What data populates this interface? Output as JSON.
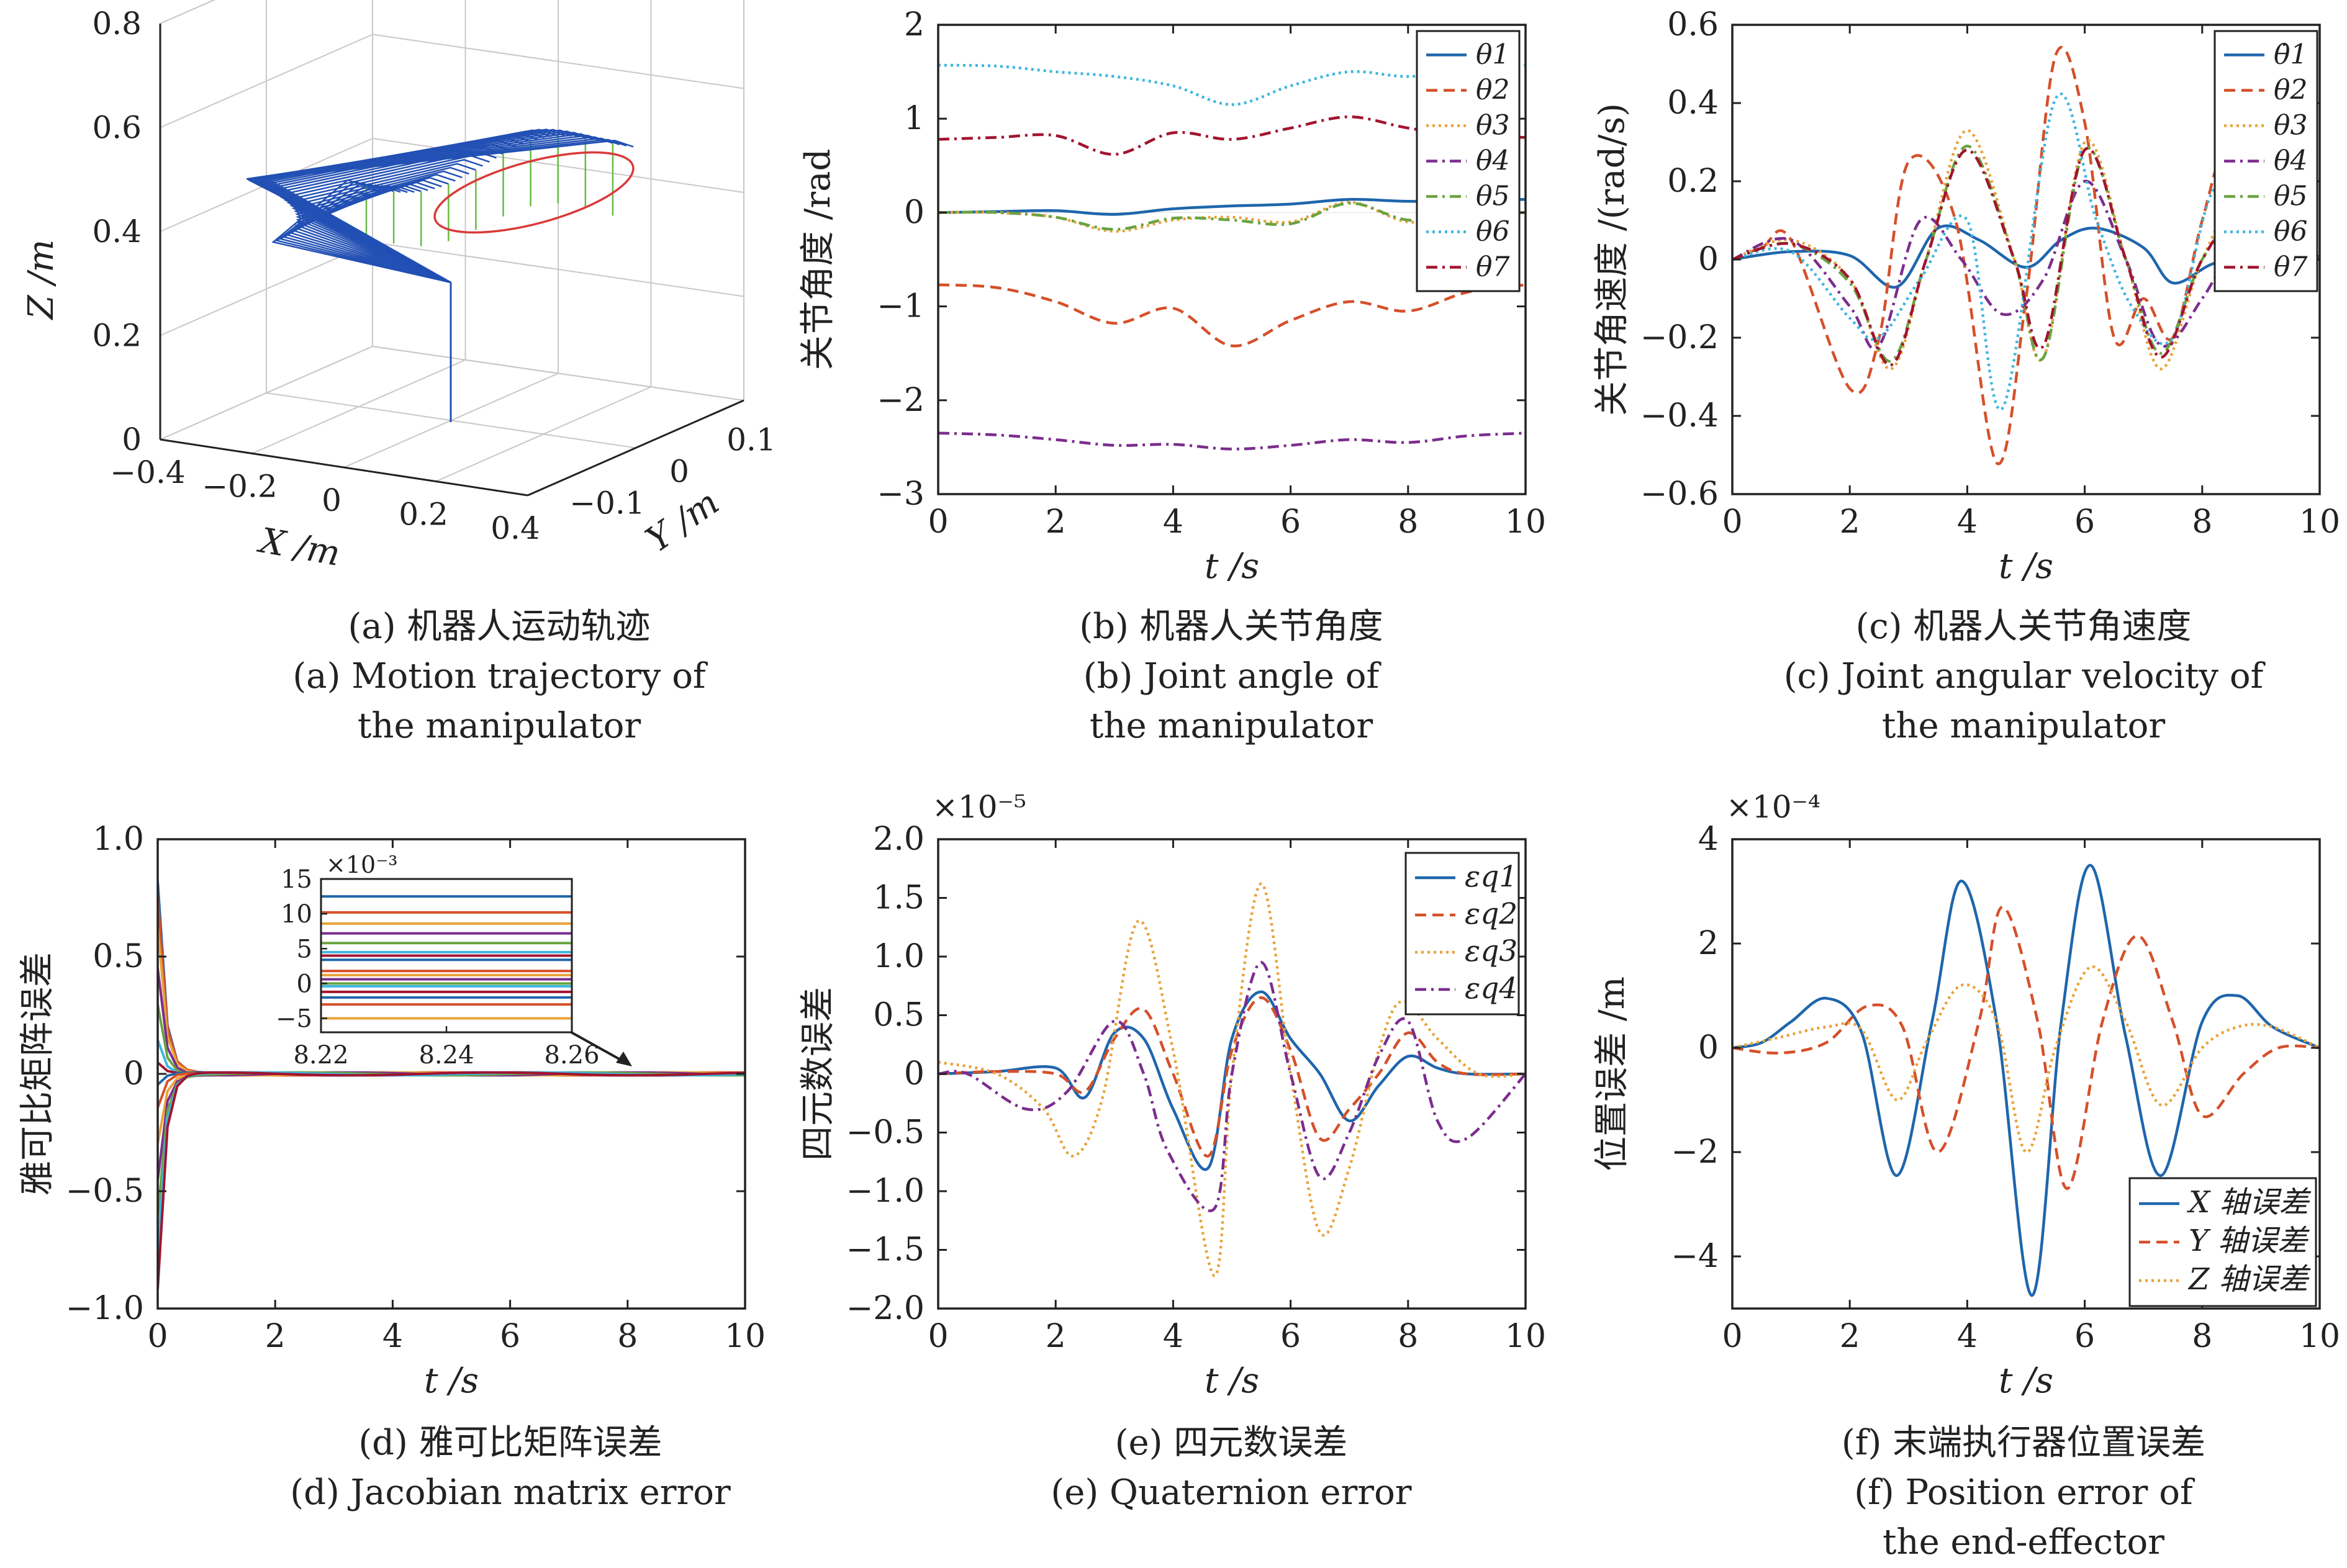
{
  "colors": {
    "s1": "#1f66ac",
    "s2": "#d5502a",
    "s3": "#e8a33a",
    "s4": "#7b2d8e",
    "s5": "#6aa341",
    "s6": "#3fb6df",
    "s7": "#a2142f",
    "traj_blue": "#2250b4",
    "traj_green": "#66bb44",
    "traj_red": "#d93a3a",
    "axis": "#222222",
    "grid": "#c8c8c8"
  },
  "captions": {
    "a": [
      "(a) 机器人运动轨迹",
      "(a) Motion trajectory of",
      "the manipulator"
    ],
    "b": [
      "(b) 机器人关节角度",
      "(b) Joint angle of",
      "the manipulator"
    ],
    "c": [
      "(c) 机器人关节角速度",
      "(c) Joint angular velocity of",
      "the manipulator"
    ],
    "d": [
      "(d) 雅可比矩阵误差",
      "(d) Jacobian matrix error"
    ],
    "e": [
      "(e) 四元数误差",
      "(e) Quaternion error"
    ],
    "f": [
      "(f) 末端执行器位置误差",
      "(f) Position error of",
      "the end-effector"
    ]
  },
  "chart_data": [
    {
      "id": "a",
      "type": "line3d",
      "xlabel": "X /m",
      "ylabel": "Y /m",
      "zlabel": "Z /m",
      "xticks": [
        "−0.4",
        "−0.2",
        "0",
        "0.2",
        "0.4"
      ],
      "yticks": [
        "−0.1",
        "0",
        "0.1"
      ],
      "zticks": [
        "0",
        "0.2",
        "0.4",
        "0.6",
        "0.8"
      ],
      "xlim": [
        -0.4,
        0.4
      ],
      "ylim": [
        -0.15,
        0.15
      ],
      "zlim": [
        0,
        0.8
      ]
    },
    {
      "id": "b",
      "type": "line",
      "xlabel": "t /s",
      "ylabel": "关节角度 /rad",
      "xlim": [
        0,
        10
      ],
      "ylim": [
        -3,
        2
      ],
      "xticks": [
        "0",
        "2",
        "4",
        "6",
        "8",
        "10"
      ],
      "yticks": [
        "−3",
        "−2",
        "−1",
        "0",
        "1",
        "2"
      ],
      "legend": [
        "θ1",
        "θ2",
        "θ3",
        "θ4",
        "θ5",
        "θ6",
        "θ7"
      ],
      "legend_position": "top-right",
      "series": [
        {
          "name": "θ1",
          "color": "s1",
          "dash": "solid",
          "x": [
            0,
            1,
            2,
            3,
            4,
            5,
            6,
            7,
            8,
            9,
            10
          ],
          "y": [
            0,
            0.01,
            0.02,
            -0.02,
            0.04,
            0.07,
            0.09,
            0.14,
            0.12,
            0.13,
            0.14
          ]
        },
        {
          "name": "θ2",
          "color": "s2",
          "dash": "dash",
          "x": [
            0,
            1,
            2,
            3,
            4,
            5,
            6,
            7,
            8,
            9,
            10
          ],
          "y": [
            -0.77,
            -0.8,
            -0.95,
            -1.18,
            -1.02,
            -1.42,
            -1.15,
            -0.95,
            -1.05,
            -0.85,
            -0.77
          ]
        },
        {
          "name": "θ3",
          "color": "s3",
          "dash": "dot",
          "x": [
            0,
            1,
            2,
            3,
            4,
            5,
            6,
            7,
            8,
            9,
            10
          ],
          "y": [
            0,
            0,
            -0.05,
            -0.2,
            -0.08,
            -0.05,
            -0.1,
            0.11,
            -0.1,
            -0.02,
            0
          ]
        },
        {
          "name": "θ4",
          "color": "s4",
          "dash": "dashdot",
          "x": [
            0,
            1,
            2,
            3,
            4,
            5,
            6,
            7,
            8,
            9,
            10
          ],
          "y": [
            -2.35,
            -2.37,
            -2.42,
            -2.48,
            -2.47,
            -2.52,
            -2.48,
            -2.42,
            -2.45,
            -2.38,
            -2.35
          ]
        },
        {
          "name": "θ5",
          "color": "s5",
          "dash": "dashdot",
          "x": [
            0,
            1,
            2,
            3,
            4,
            5,
            6,
            7,
            8,
            9,
            10
          ],
          "y": [
            0,
            0,
            -0.05,
            -0.18,
            -0.06,
            -0.08,
            -0.12,
            0.1,
            -0.08,
            -0.02,
            0
          ]
        },
        {
          "name": "θ6",
          "color": "s6",
          "dash": "dot",
          "x": [
            0,
            1,
            2,
            3,
            4,
            5,
            6,
            7,
            8,
            9,
            10
          ],
          "y": [
            1.57,
            1.56,
            1.5,
            1.45,
            1.35,
            1.15,
            1.35,
            1.5,
            1.45,
            1.52,
            1.57
          ]
        },
        {
          "name": "θ7",
          "color": "s7",
          "dash": "dashdot",
          "x": [
            0,
            1,
            2,
            3,
            4,
            5,
            6,
            7,
            8,
            9,
            10
          ],
          "y": [
            0.78,
            0.8,
            0.82,
            0.62,
            0.85,
            0.78,
            0.9,
            1.02,
            0.9,
            0.82,
            0.8
          ]
        }
      ]
    },
    {
      "id": "c",
      "type": "line",
      "xlabel": "t /s",
      "ylabel": "关节角速度 /(rad/s)",
      "xlim": [
        0,
        10
      ],
      "ylim": [
        -0.6,
        0.6
      ],
      "xticks": [
        "0",
        "2",
        "4",
        "6",
        "8",
        "10"
      ],
      "yticks": [
        "−0.6",
        "−0.4",
        "−0.2",
        "0",
        "0.2",
        "0.4",
        "0.6"
      ],
      "legend": [
        "θ̇1",
        "θ2",
        "θ3",
        "θ4",
        "θ5",
        "θ6",
        "θ7"
      ],
      "legend_position": "top-right",
      "series": [
        {
          "name": "θ̇1",
          "color": "s1",
          "dash": "solid",
          "x": [
            0,
            1,
            2,
            2.8,
            3.5,
            4.2,
            5,
            5.6,
            6.2,
            7,
            7.5,
            8.2,
            9,
            10
          ],
          "y": [
            0,
            0.02,
            0.01,
            -0.07,
            0.08,
            0.05,
            -0.02,
            0.05,
            0.08,
            0.03,
            -0.06,
            -0.01,
            0.01,
            0
          ]
        },
        {
          "name": "θ2",
          "color": "s2",
          "dash": "dash",
          "x": [
            0,
            0.5,
            1,
            2,
            2.5,
            3,
            3.8,
            4.5,
            5,
            5.5,
            6,
            6.5,
            7,
            7.5,
            8,
            8.5,
            9,
            9.5,
            10
          ],
          "y": [
            0,
            0.03,
            0.05,
            -0.33,
            -0.2,
            0.25,
            0.1,
            -0.52,
            -0.1,
            0.52,
            0.35,
            -0.2,
            -0.1,
            -0.2,
            0.1,
            0.32,
            0.1,
            0.02,
            0
          ]
        },
        {
          "name": "θ3",
          "color": "s3",
          "dash": "dot",
          "x": [
            0,
            1,
            2,
            2.7,
            3.3,
            4,
            4.8,
            5.3,
            6,
            6.7,
            7.3,
            8,
            8.7,
            10
          ],
          "y": [
            0,
            0.05,
            -0.05,
            -0.28,
            0.0,
            0.33,
            0.0,
            -0.25,
            0.3,
            0.0,
            -0.28,
            0.0,
            0.15,
            0
          ]
        },
        {
          "name": "θ4",
          "color": "s4",
          "dash": "dashdot",
          "x": [
            0,
            1,
            2,
            2.5,
            3.2,
            3.9,
            4.6,
            5.3,
            6,
            6.7,
            7.3,
            8,
            8.6,
            9.3,
            10
          ],
          "y": [
            0,
            0.05,
            -0.12,
            -0.22,
            0.1,
            0.0,
            -0.14,
            -0.05,
            0.2,
            0.0,
            -0.22,
            -0.1,
            0.05,
            0.14,
            0
          ]
        },
        {
          "name": "θ5",
          "color": "s5",
          "dash": "dashdot",
          "x": [
            0,
            1,
            2,
            2.7,
            3.3,
            4,
            4.8,
            5.3,
            6,
            6.7,
            7.3,
            8,
            8.7,
            10
          ],
          "y": [
            0,
            0.04,
            -0.06,
            -0.26,
            0.0,
            0.29,
            0.0,
            -0.25,
            0.28,
            0.0,
            -0.24,
            0.0,
            0.1,
            0
          ]
        },
        {
          "name": "θ6",
          "color": "s6",
          "dash": "dot",
          "x": [
            0,
            1,
            2,
            2.5,
            3.2,
            4,
            4.6,
            5.5,
            6.2,
            6.8,
            7.5,
            8.2,
            9,
            10
          ],
          "y": [
            0,
            0.02,
            -0.15,
            -0.2,
            -0.05,
            0.1,
            -0.38,
            0.41,
            0.1,
            -0.12,
            -0.2,
            0.18,
            0.12,
            0
          ]
        },
        {
          "name": "θ7",
          "color": "s7",
          "dash": "dashdot",
          "x": [
            0,
            1,
            2,
            2.7,
            3.3,
            4,
            4.8,
            5.3,
            6,
            6.7,
            7.3,
            8,
            8.7,
            10
          ],
          "y": [
            0,
            0.04,
            -0.05,
            -0.27,
            0.0,
            0.28,
            0.0,
            -0.22,
            0.28,
            0.0,
            -0.25,
            0.0,
            0.1,
            0
          ]
        }
      ]
    },
    {
      "id": "d",
      "type": "line",
      "xlabel": "t /s",
      "ylabel": "雅可比矩阵误差",
      "xlim": [
        0,
        10
      ],
      "ylim": [
        -1.0,
        1.0
      ],
      "xticks": [
        "0",
        "2",
        "4",
        "6",
        "8",
        "10"
      ],
      "yticks": [
        "−1.0",
        "−0.5",
        "0",
        "0.5",
        "1.0"
      ],
      "initial_values": [
        0.82,
        0.75,
        0.62,
        0.45,
        0.3,
        0.15,
        0.05,
        -0.05,
        -0.15,
        -0.3,
        -0.45,
        -0.6,
        -0.75,
        -0.92
      ],
      "inset": {
        "xlim": [
          8.22,
          8.26
        ],
        "ylim": [
          -7,
          15
        ],
        "xticks": [
          "8.22",
          "8.24",
          "8.26"
        ],
        "yticks": [
          "−5",
          "0",
          "5",
          "10",
          "15"
        ],
        "exponent": "×10⁻³",
        "levels": [
          12.5,
          10.2,
          8.6,
          7.2,
          5.8,
          4.5,
          4.0,
          3.4,
          1.8,
          1.2,
          0.6,
          0.0,
          -0.4,
          -1.2,
          -2.0,
          -3.0,
          -5.0
        ]
      }
    },
    {
      "id": "e",
      "type": "line",
      "xlabel": "t /s",
      "ylabel": "四元数误差",
      "xlim": [
        0,
        10
      ],
      "ylim": [
        -2.0,
        2.0
      ],
      "exponent": "×10⁻⁵",
      "xticks": [
        "0",
        "2",
        "4",
        "6",
        "8",
        "10"
      ],
      "yticks": [
        "−2.0",
        "−1.5",
        "−1.0",
        "−0.5",
        "0",
        "0.5",
        "1.0",
        "1.5",
        "2.0"
      ],
      "legend": [
        "εq1",
        "εq2",
        "εq3",
        "εq4"
      ],
      "legend_position": "top-right",
      "series": [
        {
          "name": "εq1",
          "color": "s1",
          "dash": "solid",
          "x": [
            0,
            1,
            2,
            2.5,
            3,
            3.5,
            4,
            4.6,
            5,
            5.5,
            6,
            6.5,
            7,
            7.5,
            8,
            8.5,
            9,
            10
          ],
          "y": [
            0,
            0.02,
            0.05,
            -0.2,
            0.35,
            0.3,
            -0.3,
            -0.8,
            0.3,
            0.7,
            0.3,
            0.0,
            -0.4,
            -0.1,
            0.15,
            0.05,
            0.0,
            0
          ]
        },
        {
          "name": "εq2",
          "color": "s2",
          "dash": "dash",
          "x": [
            0,
            1,
            2,
            2.5,
            3,
            3.5,
            4,
            4.6,
            5,
            5.5,
            6,
            6.5,
            7,
            7.5,
            8,
            8.5,
            9,
            10
          ],
          "y": [
            0,
            0.02,
            0.0,
            -0.15,
            0.3,
            0.55,
            0.0,
            -0.7,
            0.2,
            0.65,
            0.2,
            -0.55,
            -0.3,
            0.0,
            0.35,
            0.1,
            0.0,
            0
          ]
        },
        {
          "name": "εq3",
          "color": "s3",
          "dash": "dot",
          "x": [
            0,
            1,
            1.8,
            2.3,
            2.8,
            3.4,
            4,
            4.7,
            5,
            5.5,
            6,
            6.5,
            7,
            7.5,
            7.9,
            8.5,
            9.2,
            10
          ],
          "y": [
            0.1,
            0.0,
            -0.3,
            -0.7,
            -0.2,
            1.3,
            0.2,
            -1.72,
            0.0,
            1.62,
            0.0,
            -1.35,
            -0.8,
            0.2,
            0.62,
            0.3,
            0.0,
            0
          ]
        },
        {
          "name": "εq4",
          "color": "s4",
          "dash": "dashdot",
          "x": [
            0,
            0.5,
            1.5,
            2.2,
            3,
            3.5,
            3.9,
            4.7,
            5,
            5.5,
            6,
            6.5,
            7,
            7.5,
            8,
            8.5,
            9,
            10
          ],
          "y": [
            0,
            0.0,
            -0.3,
            -0.15,
            0.45,
            0.0,
            -0.65,
            -1.15,
            0.0,
            0.95,
            0.0,
            -0.88,
            -0.5,
            0.15,
            0.45,
            -0.4,
            -0.55,
            0
          ]
        }
      ]
    },
    {
      "id": "f",
      "type": "line",
      "xlabel": "t /s",
      "ylabel": "位置误差 /m",
      "xlim": [
        0,
        10
      ],
      "ylim": [
        -5,
        4
      ],
      "exponent": "×10⁻⁴",
      "xticks": [
        "0",
        "2",
        "4",
        "6",
        "8",
        "10"
      ],
      "yticks": [
        "−4",
        "−2",
        "0",
        "2",
        "4"
      ],
      "legend": [
        "X 轴误差",
        "Y 轴误差",
        "Z 轴误差"
      ],
      "legend_position": "bottom-right",
      "series": [
        {
          "name": "X 轴误差",
          "color": "s1",
          "dash": "solid",
          "x": [
            0,
            0.5,
            1,
            1.6,
            2.2,
            2.8,
            3.4,
            3.9,
            4.5,
            5.1,
            5.6,
            6.1,
            6.7,
            7.3,
            8,
            8.6,
            9.2,
            10
          ],
          "y": [
            0,
            0.1,
            0.5,
            0.95,
            0.3,
            -2.45,
            0.5,
            3.2,
            0.5,
            -4.75,
            0.5,
            3.5,
            0.2,
            -2.45,
            0.5,
            1.0,
            0.4,
            0
          ]
        },
        {
          "name": "Y 轴误差",
          "color": "s2",
          "dash": "dash",
          "x": [
            0,
            0.8,
            1.6,
            2.3,
            2.9,
            3.5,
            4.2,
            4.6,
            5.2,
            5.7,
            6.3,
            6.9,
            7.5,
            8,
            8.7,
            9.3,
            10
          ],
          "y": [
            0,
            -0.1,
            0.1,
            0.8,
            0.4,
            -2.0,
            0.5,
            2.7,
            0.5,
            -2.7,
            0.5,
            2.15,
            0.5,
            -1.3,
            -0.5,
            0.0,
            0
          ]
        },
        {
          "name": "Z 轴误差",
          "color": "s3",
          "dash": "dot",
          "x": [
            0,
            0.8,
            1.6,
            2.2,
            2.8,
            3.3,
            3.9,
            4.5,
            5,
            5.5,
            6.1,
            6.7,
            7.3,
            8,
            8.6,
            9.2,
            10
          ],
          "y": [
            0,
            0.2,
            0.4,
            0.35,
            -1.0,
            0.1,
            1.2,
            0.5,
            -2.0,
            0.0,
            1.55,
            0.5,
            -1.1,
            0.0,
            0.4,
            0.4,
            0
          ]
        }
      ]
    }
  ]
}
